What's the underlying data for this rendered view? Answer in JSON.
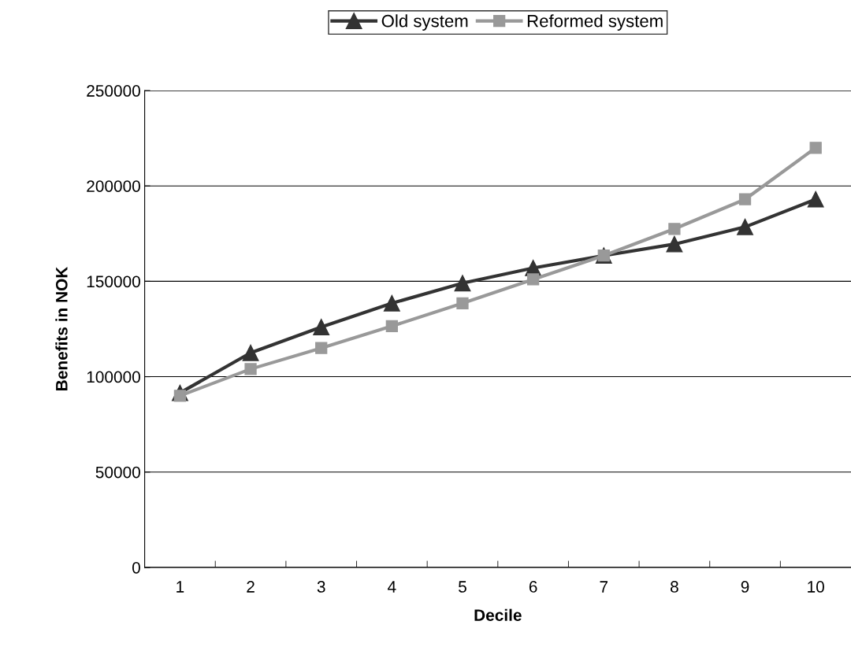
{
  "chart_data": {
    "type": "line",
    "xlabel": "Decile",
    "ylabel": "Benefits in NOK",
    "categories": [
      "1",
      "2",
      "3",
      "4",
      "5",
      "6",
      "7",
      "8",
      "9",
      "10"
    ],
    "series": [
      {
        "name": "Old system",
        "color": "#333333",
        "marker": "triangle",
        "values": [
          91500,
          112500,
          126000,
          138500,
          149000,
          157000,
          163500,
          169500,
          178500,
          193000
        ]
      },
      {
        "name": "Reformed system",
        "color": "#999999",
        "marker": "square",
        "values": [
          90000,
          104000,
          115000,
          126500,
          138500,
          151000,
          163500,
          177500,
          193000,
          220000
        ]
      }
    ],
    "ylim": [
      0,
      250000
    ],
    "yticks": [
      0,
      50000,
      100000,
      150000,
      200000,
      250000
    ],
    "grid": "y",
    "legend": "top",
    "line_style": "solid"
  }
}
